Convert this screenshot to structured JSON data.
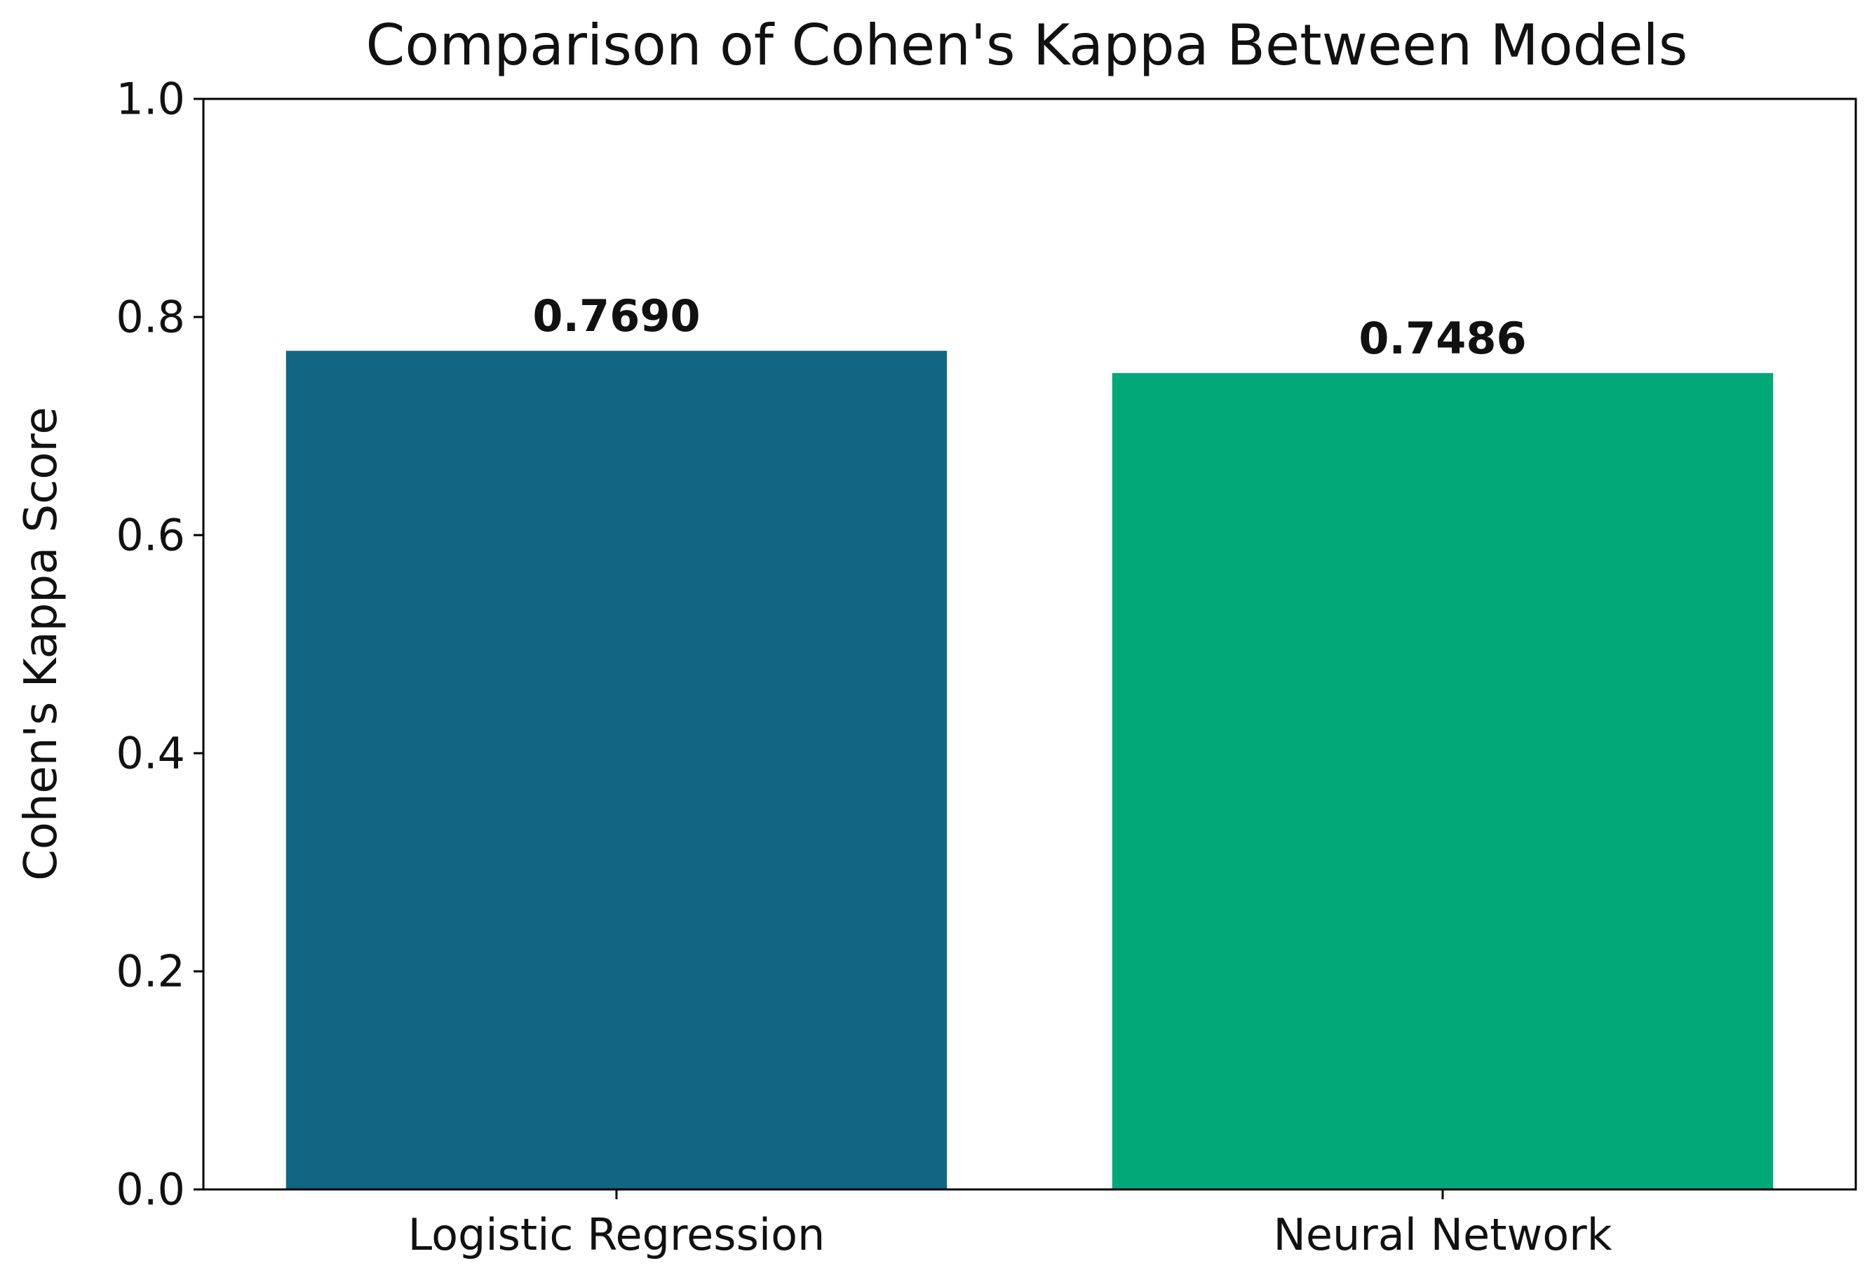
{
  "chart_data": {
    "type": "bar",
    "title": "Comparison of Cohen's Kappa Between Models",
    "xlabel": "",
    "ylabel": "Cohen's Kappa Score",
    "categories": [
      "Logistic Regression",
      "Neural Network"
    ],
    "values": [
      0.769,
      0.7486
    ],
    "value_labels": [
      "0.7690",
      "0.7486"
    ],
    "colors": [
      "#126683",
      "#03A878"
    ],
    "ylim": [
      0.0,
      1.0
    ],
    "yticks": [
      0.0,
      0.2,
      0.4,
      0.6,
      0.8,
      1.0
    ],
    "ytick_labels": [
      "0.0",
      "0.2",
      "0.4",
      "0.6",
      "0.8",
      "1.0"
    ],
    "grid": false,
    "legend": "none"
  }
}
